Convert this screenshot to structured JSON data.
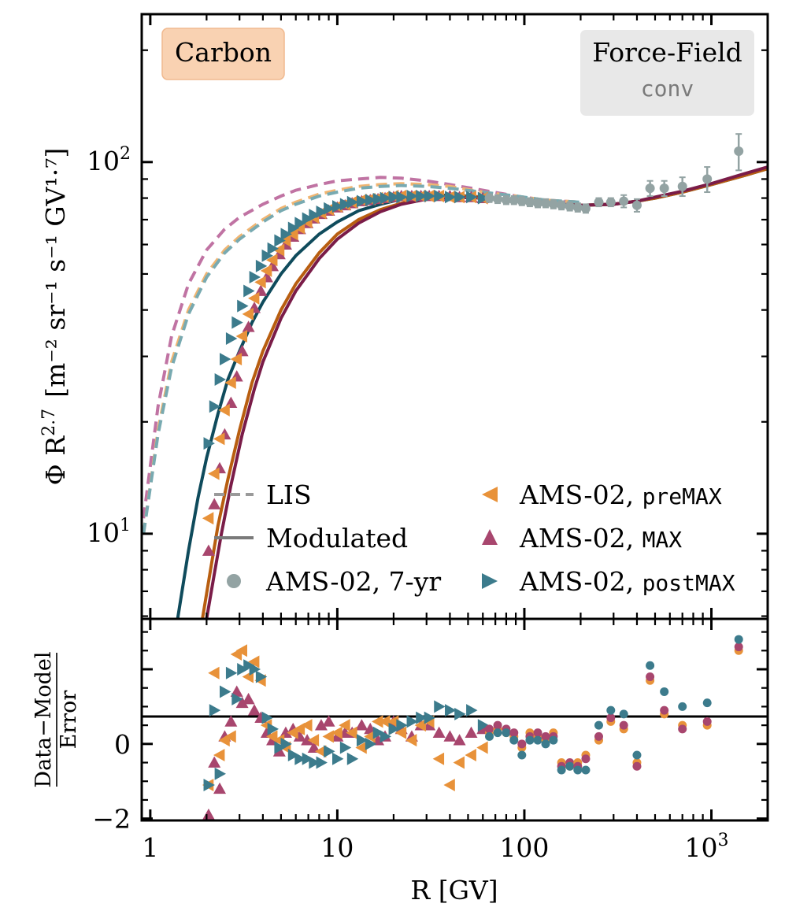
{
  "chart_data": [
    {
      "type": "line",
      "panel": "main",
      "ylabel_prefix": "Φ R",
      "ylabel_exp": "2.7",
      "ylabel_units": "[m⁻² sr⁻¹ s⁻¹ GV¹·⁷]",
      "xscale": "log",
      "yscale": "log",
      "xlim": [
        0.9,
        2000
      ],
      "ylim": [
        5.9,
        250
      ],
      "yticks": [
        {
          "value": 10,
          "label": "10",
          "exp": "1"
        },
        {
          "value": 100,
          "label": "10",
          "exp": "2"
        }
      ],
      "badges": {
        "element": {
          "text": "Carbon",
          "color": "#c06a10",
          "bg": "#f9d2b2",
          "position": "top-left"
        },
        "model": {
          "line1": "Force-Field",
          "line2": "conv",
          "color": "#7a7a7a",
          "bg": "#e8e8e8",
          "position": "top-right"
        }
      },
      "legend": {
        "lis": "LIS",
        "modulated": "Modulated",
        "ams7": "AMS-02, 7-yr",
        "pre_prefix": "AMS-02, ",
        "pre_code": "preMAX",
        "max_prefix": "AMS-02, ",
        "max_code": "MAX",
        "post_prefix": "AMS-02, ",
        "post_code": "postMAX"
      },
      "colors": {
        "gray": "#93a3a3",
        "premax": "#e8923a",
        "max": "#a8466e",
        "postmax": "#3c7b8c",
        "premax_mod": "#b85e10",
        "max_mod": "#7a1c48",
        "postmax_mod": "#0f4b5c",
        "lis_pink": "#c073a3",
        "lis_orange": "#f0b572",
        "lis_teal": "#78aab1"
      },
      "lis": [
        {
          "name": "LIS (MAX)",
          "color_key": "lis_pink",
          "x": [
            0.92,
            1.1,
            1.3,
            1.6,
            2,
            2.5,
            3,
            4,
            5,
            6,
            8,
            10,
            13,
            17,
            22,
            30,
            40,
            60,
            90,
            130,
            200
          ],
          "y": [
            11,
            22,
            34,
            47,
            58,
            66,
            71,
            77,
            81,
            84,
            87,
            89,
            90,
            91,
            90.5,
            89,
            87,
            84,
            81,
            79,
            78
          ]
        },
        {
          "name": "LIS (preMAX)",
          "color_key": "lis_orange",
          "x": [
            0.92,
            1.1,
            1.3,
            1.6,
            2,
            2.5,
            3,
            4,
            5,
            6,
            8,
            10,
            13,
            17,
            22,
            30,
            40,
            60,
            90,
            130,
            200
          ],
          "y": [
            10,
            19,
            29,
            40,
            50,
            58,
            63,
            70,
            75,
            78,
            82,
            84,
            86,
            87,
            87.5,
            87,
            86,
            83,
            81,
            79,
            78
          ]
        },
        {
          "name": "LIS (postMAX)",
          "color_key": "lis_teal",
          "x": [
            0.92,
            1.1,
            1.3,
            1.6,
            2,
            2.5,
            3,
            4,
            5,
            6,
            8,
            10,
            13,
            17,
            22,
            30,
            40,
            60,
            90,
            130,
            200
          ],
          "y": [
            10,
            18.5,
            28,
            39,
            49,
            57,
            62,
            69,
            74,
            77,
            81,
            83,
            85,
            86,
            86.5,
            86,
            85,
            83,
            81,
            79,
            78
          ]
        }
      ],
      "modulated": [
        {
          "name": "Modulated (postMAX)",
          "color_key": "postmax_mod",
          "x": [
            1.4,
            1.6,
            1.8,
            2,
            2.3,
            2.6,
            3,
            3.5,
            4,
            5,
            6,
            8,
            10,
            13,
            17,
            22,
            30,
            40,
            60,
            100,
            150,
            200,
            300,
            400,
            500,
            700,
            1000,
            1500,
            2000
          ],
          "y": [
            5.9,
            9,
            12.5,
            16,
            21,
            26,
            31,
            37,
            42,
            50,
            56,
            64,
            69,
            74,
            77,
            79.5,
            81,
            81.5,
            80.5,
            78.5,
            77,
            76.5,
            77,
            78.5,
            80,
            83,
            87,
            92,
            96
          ]
        },
        {
          "name": "Modulated (preMAX)",
          "color_key": "premax_mod",
          "x": [
            1.9,
            2.1,
            2.3,
            2.6,
            3,
            3.5,
            4,
            5,
            6,
            8,
            10,
            13,
            17,
            22,
            30,
            40,
            60,
            100,
            150,
            200,
            300,
            400,
            500,
            700,
            1000,
            1500,
            2000
          ],
          "y": [
            5.9,
            8,
            10.5,
            14,
            19,
            25.5,
            31,
            40,
            47,
            57,
            64,
            70,
            74.5,
            77.5,
            80,
            81,
            80.5,
            78.5,
            77,
            76.5,
            77,
            78.5,
            80,
            83,
            87,
            92,
            96
          ]
        },
        {
          "name": "Modulated (MAX)",
          "color_key": "max_mod",
          "x": [
            2.0,
            2.2,
            2.4,
            2.7,
            3.1,
            3.6,
            4,
            5,
            6,
            8,
            10,
            13,
            17,
            22,
            30,
            40,
            60,
            100,
            150,
            200,
            300,
            400,
            500,
            700,
            1000,
            1500,
            2000
          ],
          "y": [
            5.9,
            7.8,
            10,
            13.5,
            18.5,
            24.5,
            29,
            38,
            45,
            55,
            62,
            68.5,
            73.5,
            77,
            79.5,
            80.5,
            80,
            78.5,
            77,
            76.5,
            77,
            78.5,
            80.5,
            83.5,
            87.5,
            93,
            97
          ]
        }
      ],
      "ams7": {
        "x": [
          65,
          72,
          80,
          88,
          97,
          107,
          118,
          130,
          143,
          158,
          175,
          193,
          213,
          250,
          290,
          340,
          400,
          470,
          560,
          700,
          950,
          1400
        ],
        "y": [
          80,
          79.5,
          79,
          79,
          78.5,
          78,
          77.5,
          77.5,
          77,
          76.5,
          76,
          75.5,
          75,
          78,
          78,
          78.5,
          76.5,
          85,
          85,
          86,
          90,
          107
        ],
        "err": [
          2,
          2,
          2,
          2,
          2,
          2,
          2,
          2,
          2,
          2,
          2,
          2,
          2,
          2,
          2,
          3,
          3,
          4,
          4,
          5,
          7,
          12
        ]
      },
      "premax": {
        "x": [
          2.05,
          2.2,
          2.35,
          2.5,
          2.7,
          2.9,
          3.1,
          3.35,
          3.6,
          3.9,
          4.2,
          4.5,
          4.9,
          5.3,
          5.8,
          6.3,
          6.9,
          7.5,
          8.2,
          9,
          10,
          11,
          12,
          13.5,
          15,
          16.5,
          18,
          20,
          22,
          25,
          28,
          31,
          35,
          40,
          45,
          52,
          60
        ],
        "y": [
          11,
          14.5,
          18,
          21.5,
          25.5,
          29.5,
          34,
          39,
          43,
          47.5,
          51,
          54.5,
          58,
          61.5,
          64,
          66.5,
          69,
          71,
          73,
          74.5,
          76,
          77,
          78,
          79,
          79.5,
          80,
          80.5,
          81,
          81,
          81,
          81,
          81,
          81,
          80.5,
          80.5,
          80.5,
          80
        ]
      },
      "max": {
        "x": [
          2.05,
          2.2,
          2.35,
          2.5,
          2.7,
          2.9,
          3.1,
          3.35,
          3.6,
          3.9,
          4.2,
          4.5,
          4.9,
          5.3,
          5.8,
          6.3,
          6.9,
          7.5,
          8.2,
          9,
          10,
          11,
          12,
          13.5,
          15,
          16.5,
          18,
          20,
          22,
          25,
          28,
          31,
          35,
          40,
          45,
          52,
          60
        ],
        "y": [
          9,
          12,
          15,
          18.5,
          22.5,
          26.5,
          31,
          36,
          40.5,
          45,
          49,
          52.5,
          56.5,
          60,
          63,
          66,
          68.5,
          70.5,
          72.5,
          74,
          75.5,
          76.5,
          77.5,
          78.5,
          79,
          79.5,
          80,
          80.5,
          81,
          81,
          81,
          81,
          81,
          81,
          80.5,
          80.5,
          80
        ]
      },
      "postmax": {
        "x": [
          2.05,
          2.2,
          2.35,
          2.5,
          2.7,
          2.9,
          3.1,
          3.35,
          3.6,
          3.9,
          4.2,
          4.5,
          4.9,
          5.3,
          5.8,
          6.3,
          6.9,
          7.5,
          8.2,
          9,
          10,
          11,
          12,
          13.5,
          15,
          16.5,
          18,
          20,
          22,
          25,
          28,
          31,
          35,
          40,
          45,
          52,
          60
        ],
        "y": [
          17.5,
          22,
          26,
          29.5,
          33.5,
          37,
          41,
          45,
          49,
          52.5,
          56,
          58.5,
          61.5,
          64,
          66.5,
          68.5,
          70.5,
          72,
          73.5,
          75,
          76,
          77,
          78,
          78.5,
          79,
          79.5,
          80,
          80.5,
          80.5,
          81,
          81,
          81,
          81,
          80.5,
          80.5,
          80.5,
          80
        ]
      }
    },
    {
      "type": "scatter",
      "panel": "residual",
      "ylabel_num": "Data−Model",
      "ylabel_den": "Error",
      "xlabel": "R [GV]",
      "xscale": "log",
      "xlim": [
        0.9,
        2000
      ],
      "ylim": [
        -2.05,
        3.35
      ],
      "xticks": [
        {
          "value": 1,
          "label": "1",
          "exp": ""
        },
        {
          "value": 10,
          "label": "10",
          "exp": ""
        },
        {
          "value": 100,
          "label": "100",
          "exp": ""
        },
        {
          "value": 1000,
          "label": "10",
          "exp": "3"
        }
      ],
      "yticks": [
        {
          "value": -2,
          "label": "−2"
        },
        {
          "value": 0,
          "label": "0"
        }
      ],
      "premax": {
        "x": [
          2.05,
          2.2,
          2.35,
          2.5,
          2.7,
          2.9,
          3.1,
          3.35,
          3.6,
          3.9,
          4.2,
          4.5,
          4.9,
          5.3,
          5.8,
          6.3,
          6.9,
          7.5,
          8.2,
          9,
          10,
          11,
          12,
          13.5,
          15,
          16.5,
          18,
          20,
          22,
          25,
          28,
          31,
          35,
          40,
          45,
          52,
          60
        ],
        "y": [
          -1.1,
          1.9,
          -0.3,
          0.1,
          0.2,
          2.4,
          2.5,
          1.8,
          2.2,
          1.7,
          0.5,
          0.2,
          0.1,
          -0.1,
          0.3,
          0.4,
          0.5,
          0.1,
          -0.2,
          0.2,
          0.3,
          0.5,
          0.3,
          -0.1,
          0.2,
          0.6,
          0.6,
          0.6,
          0.3,
          0.1,
          0.5,
          0.6,
          -0.4,
          -1.1,
          -0.5,
          -0.3,
          -0.1
        ]
      },
      "max": {
        "x": [
          2.05,
          2.2,
          2.35,
          2.5,
          2.7,
          2.9,
          3.1,
          3.35,
          3.6,
          3.9,
          4.2,
          4.5,
          4.9,
          5.3,
          5.8,
          6.3,
          6.9,
          7.5,
          8.2,
          9,
          10,
          11,
          12,
          13.5,
          15,
          16.5,
          18,
          20,
          22,
          25,
          28,
          31,
          35,
          40,
          45,
          52,
          60
        ],
        "y": [
          -1.9,
          -0.5,
          -1.2,
          0.2,
          0.6,
          1.4,
          1.1,
          1.2,
          0.9,
          0.7,
          0.3,
          0.1,
          -0.2,
          0.3,
          0.4,
          0.2,
          0.1,
          -0.1,
          0.5,
          0.6,
          0.2,
          0.3,
          0.3,
          0.5,
          0.4,
          0.1,
          0.2,
          0.6,
          0.4,
          0.2,
          0.5,
          0.5,
          0.3,
          0.2,
          0.1,
          0.3,
          0.4
        ]
      },
      "postmax": {
        "x": [
          2.05,
          2.2,
          2.35,
          2.5,
          2.7,
          2.9,
          3.1,
          3.35,
          3.6,
          3.9,
          4.2,
          4.5,
          4.9,
          5.3,
          5.8,
          6.3,
          6.9,
          7.5,
          8.2,
          9,
          10,
          11,
          12,
          13.5,
          15,
          16.5,
          18,
          20,
          22,
          25,
          28,
          31,
          35,
          40,
          45,
          52,
          60
        ],
        "y": [
          -1.1,
          0.9,
          -0.8,
          1.4,
          1.9,
          1.2,
          2.0,
          2.1,
          2.0,
          1.8,
          0.7,
          0.4,
          -0.1,
          0.0,
          -0.3,
          -0.4,
          -0.4,
          -0.5,
          -0.5,
          -0.2,
          -0.4,
          -0.1,
          -0.4,
          0.1,
          0.0,
          0.3,
          0.2,
          0.4,
          0.5,
          0.6,
          0.7,
          0.7,
          1.0,
          0.9,
          0.8,
          0.9,
          0.5
        ]
      },
      "dots": {
        "x": [
          65,
          72,
          80,
          88,
          97,
          107,
          118,
          130,
          143,
          158,
          175,
          193,
          213,
          250,
          290,
          340,
          400,
          470,
          560,
          700,
          950,
          1400
        ],
        "premax": [
          0.3,
          0.4,
          0.3,
          0.2,
          -0.1,
          0.3,
          0.2,
          0.1,
          0.3,
          -0.5,
          -0.6,
          -0.5,
          -0.3,
          0.1,
          0.6,
          0.4,
          -0.5,
          1.7,
          0.8,
          0.5,
          0.5,
          2.5
        ],
        "max": [
          0.4,
          0.5,
          0.4,
          0.3,
          0.0,
          0.2,
          0.3,
          0.2,
          0.2,
          -0.6,
          -0.5,
          -0.6,
          -0.4,
          0.2,
          0.7,
          0.5,
          -0.6,
          1.8,
          0.9,
          0.4,
          0.6,
          2.6
        ],
        "postmax": [
          0.2,
          0.3,
          0.3,
          0.1,
          -0.3,
          0.1,
          0.1,
          0.0,
          0.1,
          -0.7,
          -0.6,
          -0.7,
          -0.7,
          0.5,
          0.9,
          0.8,
          -0.3,
          2.1,
          1.4,
          1.0,
          1.1,
          2.8
        ]
      }
    }
  ]
}
